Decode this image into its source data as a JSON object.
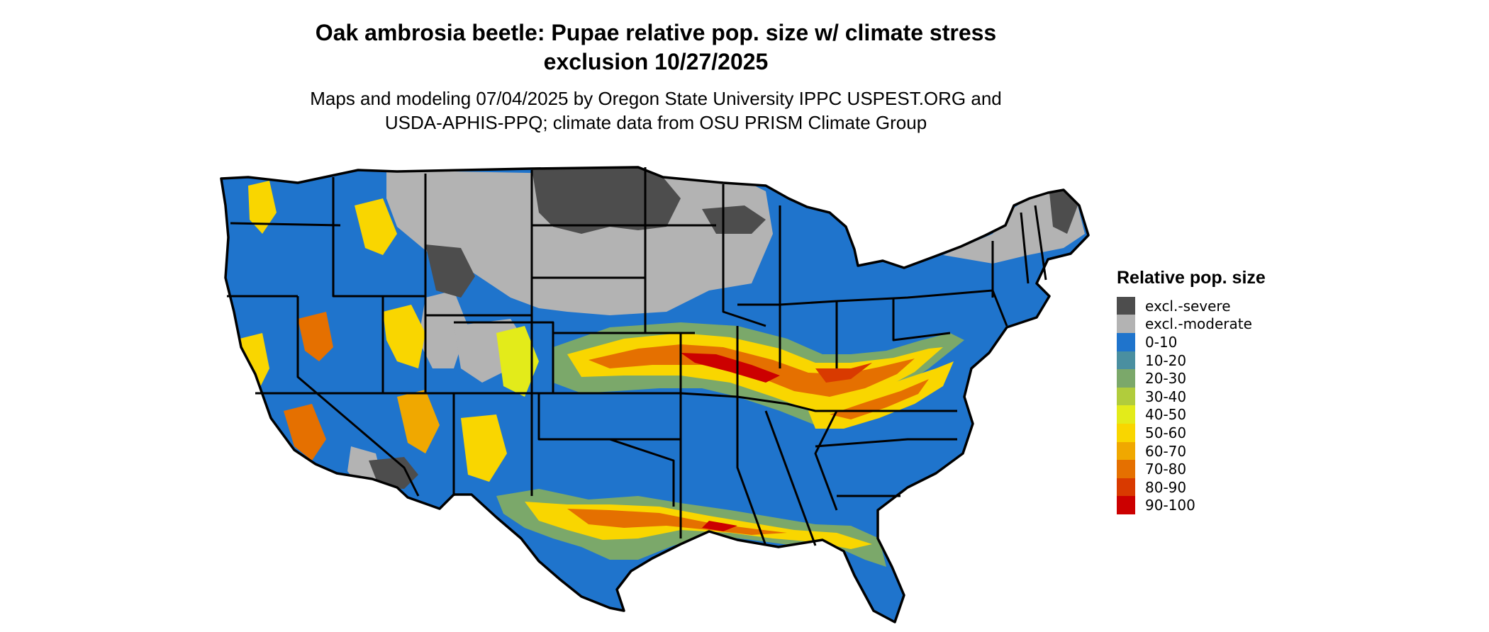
{
  "title_line1": "Oak ambrosia beetle: Pupae relative pop. size w/ climate stress",
  "title_line2": "exclusion 10/27/2025",
  "subtitle_line1": "Maps and modeling 07/04/2025 by Oregon State University IPPC USPEST.ORG and",
  "subtitle_line2": "USDA-APHIS-PPQ; climate data from OSU PRISM Climate Group",
  "legend": {
    "title": "Relative pop. size",
    "items": [
      {
        "label": "excl.-severe",
        "color": "#4d4d4d"
      },
      {
        "label": "excl.-moderate",
        "color": "#b3b3b3"
      },
      {
        "label": "0-10",
        "color": "#1f74cc"
      },
      {
        "label": "10-20",
        "color": "#4a8fa0"
      },
      {
        "label": "20-30",
        "color": "#7ba86a"
      },
      {
        "label": "30-40",
        "color": "#b1cc3c"
      },
      {
        "label": "40-50",
        "color": "#e3eb1a"
      },
      {
        "label": "50-60",
        "color": "#f9d600"
      },
      {
        "label": "60-70",
        "color": "#f0a800"
      },
      {
        "label": "70-80",
        "color": "#e57000"
      },
      {
        "label": "80-90",
        "color": "#d93a00"
      },
      {
        "label": "90-100",
        "color": "#cc0000"
      }
    ]
  }
}
